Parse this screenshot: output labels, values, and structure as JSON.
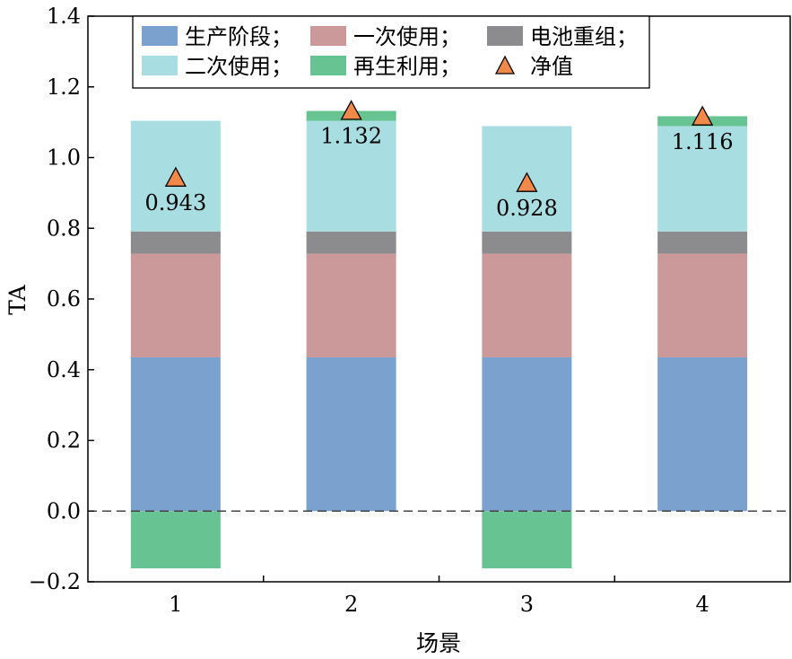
{
  "chart_data": {
    "type": "bar",
    "stacked": true,
    "title": "",
    "xlabel": "场景",
    "ylabel": "TA",
    "categories": [
      "1",
      "2",
      "3",
      "4"
    ],
    "ylim": [
      -0.2,
      1.4
    ],
    "yticks": [
      "−0.2",
      "0.0",
      "0.2",
      "0.4",
      "0.6",
      "0.8",
      "1.0",
      "1.2",
      "1.4"
    ],
    "ytick_values": [
      -0.2,
      0.0,
      0.2,
      0.4,
      0.6,
      0.8,
      1.0,
      1.2,
      1.4
    ],
    "grid": false,
    "zero_line": "dashed",
    "legend_position": "top",
    "series": [
      {
        "name": "生产阶段；",
        "color": "#7ba2cf",
        "values": [
          0.435,
          0.435,
          0.435,
          0.435
        ]
      },
      {
        "name": "一次使用；",
        "color": "#cc999a",
        "values": [
          0.293,
          0.293,
          0.293,
          0.293
        ]
      },
      {
        "name": "电池重组；",
        "color": "#8c8c8f",
        "values": [
          0.063,
          0.063,
          0.063,
          0.063
        ]
      },
      {
        "name": "二次使用；",
        "color": "#a8dde2",
        "values": [
          0.313,
          0.313,
          0.298,
          0.298
        ]
      },
      {
        "name": "再生利用；",
        "color": "#68c393",
        "values": [
          -0.162,
          0.028,
          -0.162,
          0.028
        ]
      }
    ],
    "net": {
      "name": "净值",
      "color": "#f0894a",
      "marker": "triangle",
      "values": [
        0.943,
        1.132,
        0.928,
        1.116
      ],
      "labels": [
        "0.943",
        "1.132",
        "0.928",
        "1.116"
      ]
    }
  }
}
